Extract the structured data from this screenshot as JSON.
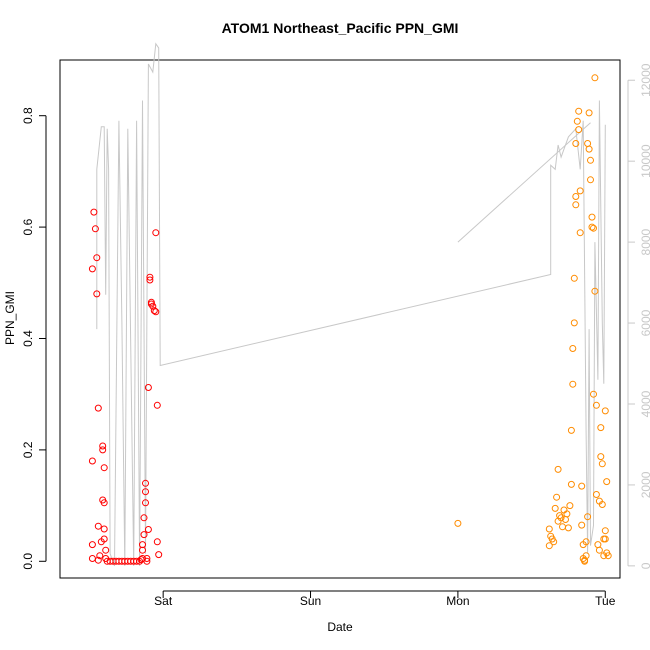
{
  "chart_data": {
    "type": "scatter",
    "title": "ATOM1 Northeast_Pacific PPN_GMI",
    "xlabel": "Date",
    "ylabel": "PPN_GMI",
    "x_axis": {
      "unit": "days since Fri 00:00",
      "range": [
        2.3,
        6.1
      ],
      "ticks": [
        {
          "x": 3,
          "label": "Sat"
        },
        {
          "x": 4,
          "label": "Sun"
        },
        {
          "x": 5,
          "label": "Mon"
        },
        {
          "x": 6,
          "label": "Tue"
        }
      ]
    },
    "y_left": {
      "range": [
        -0.03,
        0.9
      ],
      "ticks": [
        0.0,
        0.2,
        0.4,
        0.6,
        0.8
      ],
      "tick_labels": [
        "0.0",
        "0.2",
        "0.4",
        "0.6",
        "0.8"
      ]
    },
    "y_right": {
      "range": [
        -300,
        12500
      ],
      "ticks": [
        0,
        2000,
        4000,
        6000,
        8000,
        10000,
        12000
      ],
      "tick_labels": [
        "0",
        "2000",
        "4000",
        "6000",
        "8000",
        "10000",
        "12000"
      ],
      "color": "#c8c8c8"
    },
    "grid": false,
    "series": [
      {
        "color": "#ff0000",
        "marker": "open-circle",
        "points": [
          [
            2.52,
            0.03
          ],
          [
            2.52,
            0.005
          ],
          [
            2.52,
            0.18
          ],
          [
            2.52,
            0.525
          ],
          [
            2.53,
            0.627
          ],
          [
            2.54,
            0.597
          ],
          [
            2.55,
            0.545
          ],
          [
            2.55,
            0.48
          ],
          [
            2.56,
            0.275
          ],
          [
            2.56,
            0.063
          ],
          [
            2.56,
            0.002
          ],
          [
            2.57,
            0.01
          ],
          [
            2.58,
            0.035
          ],
          [
            2.59,
            0.11
          ],
          [
            2.59,
            0.2
          ],
          [
            2.59,
            0.207
          ],
          [
            2.6,
            0.168
          ],
          [
            2.6,
            0.105
          ],
          [
            2.6,
            0.058
          ],
          [
            2.6,
            0.04
          ],
          [
            2.61,
            0.02
          ],
          [
            2.61,
            0.005
          ],
          [
            2.62,
            0.0
          ],
          [
            2.64,
            0.0
          ],
          [
            2.66,
            0.0
          ],
          [
            2.68,
            0.0
          ],
          [
            2.7,
            0.0
          ],
          [
            2.72,
            0.0
          ],
          [
            2.74,
            0.0
          ],
          [
            2.76,
            0.0
          ],
          [
            2.78,
            0.0
          ],
          [
            2.8,
            0.0
          ],
          [
            2.82,
            0.0
          ],
          [
            2.84,
            0.0
          ],
          [
            2.85,
            0.003
          ],
          [
            2.86,
            0.005
          ],
          [
            2.86,
            0.02
          ],
          [
            2.86,
            0.03
          ],
          [
            2.87,
            0.048
          ],
          [
            2.87,
            0.078
          ],
          [
            2.88,
            0.105
          ],
          [
            2.88,
            0.125
          ],
          [
            2.88,
            0.14
          ],
          [
            2.89,
            0.005
          ],
          [
            2.89,
            0.0
          ],
          [
            2.9,
            0.057
          ],
          [
            2.9,
            0.312
          ],
          [
            2.91,
            0.505
          ],
          [
            2.91,
            0.51
          ],
          [
            2.92,
            0.465
          ],
          [
            2.92,
            0.462
          ],
          [
            2.93,
            0.458
          ],
          [
            2.94,
            0.45
          ],
          [
            2.95,
            0.448
          ],
          [
            2.95,
            0.59
          ],
          [
            2.96,
            0.28
          ],
          [
            2.96,
            0.035
          ],
          [
            2.97,
            0.012
          ]
        ]
      },
      {
        "color": "#ff8c00",
        "marker": "open-circle",
        "points": [
          [
            5.0,
            0.068
          ],
          [
            5.62,
            0.028
          ],
          [
            5.62,
            0.058
          ],
          [
            5.63,
            0.045
          ],
          [
            5.64,
            0.04
          ],
          [
            5.65,
            0.035
          ],
          [
            5.66,
            0.095
          ],
          [
            5.67,
            0.115
          ],
          [
            5.68,
            0.165
          ],
          [
            5.68,
            0.072
          ],
          [
            5.69,
            0.082
          ],
          [
            5.7,
            0.078
          ],
          [
            5.71,
            0.062
          ],
          [
            5.72,
            0.092
          ],
          [
            5.73,
            0.075
          ],
          [
            5.74,
            0.085
          ],
          [
            5.75,
            0.06
          ],
          [
            5.76,
            0.1
          ],
          [
            5.77,
            0.138
          ],
          [
            5.77,
            0.235
          ],
          [
            5.78,
            0.318
          ],
          [
            5.78,
            0.382
          ],
          [
            5.79,
            0.428
          ],
          [
            5.79,
            0.508
          ],
          [
            5.8,
            0.64
          ],
          [
            5.8,
            0.655
          ],
          [
            5.8,
            0.75
          ],
          [
            5.81,
            0.79
          ],
          [
            5.82,
            0.808
          ],
          [
            5.82,
            0.775
          ],
          [
            5.83,
            0.665
          ],
          [
            5.83,
            0.59
          ],
          [
            5.84,
            0.135
          ],
          [
            5.84,
            0.065
          ],
          [
            5.85,
            0.03
          ],
          [
            5.85,
            0.005
          ],
          [
            5.86,
            0.0
          ],
          [
            5.86,
            0.002
          ],
          [
            5.87,
            0.01
          ],
          [
            5.87,
            0.035
          ],
          [
            5.88,
            0.08
          ],
          [
            5.88,
            0.75
          ],
          [
            5.89,
            0.805
          ],
          [
            5.89,
            0.74
          ],
          [
            5.9,
            0.72
          ],
          [
            5.9,
            0.685
          ],
          [
            5.91,
            0.618
          ],
          [
            5.91,
            0.6
          ],
          [
            5.92,
            0.598
          ],
          [
            5.92,
            0.3
          ],
          [
            5.93,
            0.485
          ],
          [
            5.93,
            0.868
          ],
          [
            5.94,
            0.28
          ],
          [
            5.94,
            0.12
          ],
          [
            5.95,
            0.03
          ],
          [
            5.96,
            0.02
          ],
          [
            5.96,
            0.108
          ],
          [
            5.97,
            0.24
          ],
          [
            5.97,
            0.188
          ],
          [
            5.98,
            0.175
          ],
          [
            5.98,
            0.102
          ],
          [
            5.99,
            0.04
          ],
          [
            5.99,
            0.01
          ],
          [
            6.0,
            0.04
          ],
          [
            6.0,
            0.27
          ],
          [
            6.0,
            0.055
          ],
          [
            6.01,
            0.143
          ],
          [
            6.01,
            0.015
          ],
          [
            6.02,
            0.01
          ]
        ]
      }
    ],
    "line_series": {
      "axis": "right",
      "color": "#c8c8c8",
      "points": [
        [
          2.55,
          5850
        ],
        [
          2.55,
          9800
        ],
        [
          2.58,
          10850
        ],
        [
          2.6,
          10850
        ],
        [
          2.61,
          6700
        ],
        [
          2.62,
          10800
        ],
        [
          2.63,
          9800
        ],
        [
          2.64,
          300
        ],
        [
          2.67,
          0
        ],
        [
          2.7,
          11000
        ],
        [
          2.72,
          6000
        ],
        [
          2.74,
          0
        ],
        [
          2.76,
          10800
        ],
        [
          2.8,
          0
        ],
        [
          2.82,
          11000
        ],
        [
          2.84,
          0
        ],
        [
          2.86,
          11500
        ],
        [
          2.88,
          300
        ],
        [
          2.9,
          12400
        ],
        [
          2.93,
          12200
        ],
        [
          2.95,
          12900
        ],
        [
          2.97,
          12800
        ],
        [
          2.98,
          4950
        ],
        [
          5.63,
          7200
        ],
        [
          5.63,
          9900
        ],
        [
          5.66,
          9800
        ],
        [
          5.68,
          10400
        ],
        [
          5.7,
          10100
        ],
        [
          5.75,
          10600
        ],
        [
          5.8,
          10800
        ],
        [
          5.83,
          9800
        ],
        [
          5.85,
          11000
        ],
        [
          5.87,
          3300
        ],
        [
          5.88,
          300
        ],
        [
          5.89,
          5850
        ],
        [
          5.9,
          500
        ],
        [
          5.92,
          1000
        ],
        [
          5.93,
          8000
        ],
        [
          5.95,
          4600
        ],
        [
          5.96,
          11500
        ],
        [
          5.98,
          6000
        ],
        [
          5.99,
          4500
        ],
        [
          6.0,
          10900
        ]
      ],
      "extra_segment": [
        [
          5.0,
          8000
        ],
        [
          5.9,
          10950
        ]
      ]
    }
  }
}
